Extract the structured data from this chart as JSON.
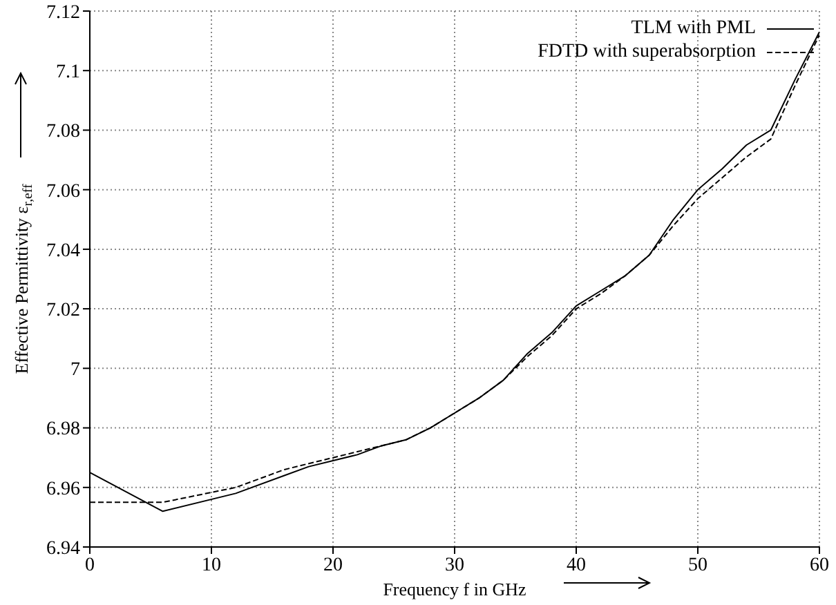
{
  "chart_data": {
    "type": "line",
    "xlabel": "Frequency f  in GHz",
    "ylabel": "Effective Permittivity ε$_{r,eff}$",
    "x": [
      0,
      6,
      12,
      16,
      18,
      20,
      22,
      24,
      26,
      28,
      30,
      32,
      34,
      36,
      38,
      40,
      42,
      44,
      46,
      48,
      50,
      52,
      54,
      56,
      58,
      60
    ],
    "series": [
      {
        "name": "TLM with PML",
        "color": "#000000",
        "line_style": "solid",
        "values": [
          6.965,
          6.952,
          6.958,
          6.964,
          6.967,
          6.969,
          6.971,
          6.974,
          6.976,
          6.98,
          6.985,
          6.99,
          6.996,
          7.005,
          7.012,
          7.021,
          7.026,
          7.031,
          7.038,
          7.05,
          7.06,
          7.067,
          7.075,
          7.08,
          7.097,
          7.113
        ]
      },
      {
        "name": "FDTD with superabsorption",
        "color": "#000000",
        "line_style": "dashed",
        "values": [
          6.955,
          6.955,
          6.96,
          6.966,
          6.968,
          6.97,
          6.972,
          6.974,
          6.976,
          6.98,
          6.985,
          6.99,
          6.996,
          7.004,
          7.011,
          7.02,
          7.025,
          7.031,
          7.038,
          7.048,
          7.057,
          7.064,
          7.071,
          7.077,
          7.095,
          7.112
        ]
      }
    ],
    "xlim": [
      0,
      60
    ],
    "xticks": [
      0,
      10,
      20,
      30,
      40,
      50,
      60
    ],
    "ylim": [
      6.94,
      7.12
    ],
    "yticks": [
      6.94,
      6.96,
      6.98,
      7,
      7.02,
      7.04,
      7.06,
      7.08,
      7.1,
      7.12
    ],
    "grid": true,
    "legend": "top right",
    "marker": "none"
  }
}
